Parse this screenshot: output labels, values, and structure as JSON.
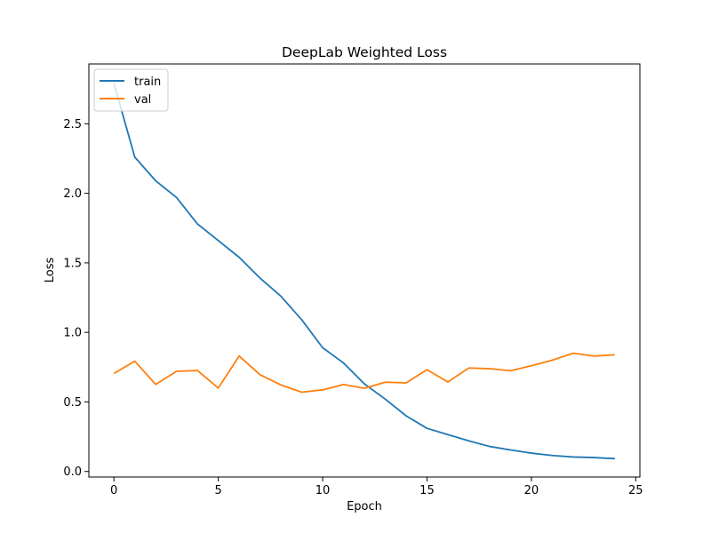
{
  "chart_data": {
    "type": "line",
    "title": "DeepLab Weighted Loss",
    "xlabel": "Epoch",
    "ylabel": "Loss",
    "xlim": [
      -1.2,
      25.2
    ],
    "ylim": [
      -0.04,
      2.93
    ],
    "xticks": [
      0,
      5,
      10,
      15,
      20,
      25
    ],
    "yticks": [
      0.0,
      0.5,
      1.0,
      1.5,
      2.0,
      2.5
    ],
    "xtick_labels": [
      "0",
      "5",
      "10",
      "15",
      "20",
      "25"
    ],
    "ytick_labels": [
      "0.0",
      "0.5",
      "1.0",
      "1.5",
      "2.0",
      "2.5"
    ],
    "grid": false,
    "legend_position": "upper-left",
    "x": [
      0,
      1,
      2,
      3,
      4,
      5,
      6,
      7,
      8,
      9,
      10,
      11,
      12,
      13,
      14,
      15,
      16,
      17,
      18,
      19,
      20,
      21,
      22,
      23,
      24
    ],
    "series": [
      {
        "name": "train",
        "color": "#1f77b4",
        "values": [
          2.79,
          2.26,
          2.09,
          1.97,
          1.78,
          1.66,
          1.54,
          1.39,
          1.26,
          1.09,
          0.89,
          0.78,
          0.63,
          0.52,
          0.4,
          0.31,
          0.265,
          0.22,
          0.18,
          0.155,
          0.132,
          0.115,
          0.104,
          0.1,
          0.092
        ]
      },
      {
        "name": "val",
        "color": "#ff7f0e",
        "values": [
          0.705,
          0.793,
          0.626,
          0.72,
          0.726,
          0.6,
          0.83,
          0.696,
          0.622,
          0.57,
          0.587,
          0.625,
          0.598,
          0.642,
          0.637,
          0.732,
          0.643,
          0.744,
          0.739,
          0.724,
          0.76,
          0.8,
          0.85,
          0.83,
          0.839
        ]
      }
    ]
  }
}
